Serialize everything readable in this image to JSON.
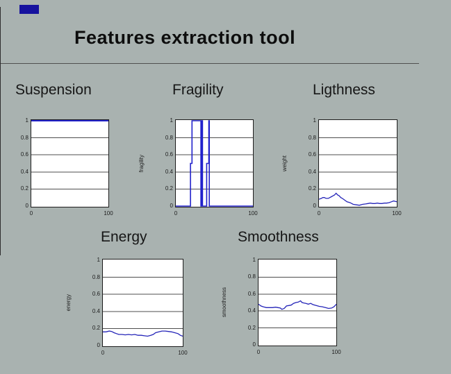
{
  "window": {
    "background": "#a9b2b0",
    "frame_line_color": "#2e2e2e",
    "divider_color": "#4f4f4f"
  },
  "marker": {
    "color": "#16129e"
  },
  "header": {
    "title": "Features extraction tool"
  },
  "chart_data": [
    {
      "type": "line",
      "title": "Suspension",
      "ylabel": "",
      "xlabel": "",
      "x_range": [
        0,
        100
      ],
      "y_range": [
        0,
        1
      ],
      "xticks": [
        0,
        100
      ],
      "yticks": [
        0,
        0.2,
        0.4,
        0.6,
        0.8,
        1
      ],
      "grid": "horizontal-only",
      "legend": false,
      "line_color": "#2222cc",
      "line_width": 2,
      "points": [
        [
          0,
          1
        ],
        [
          100,
          1
        ]
      ]
    },
    {
      "type": "line",
      "title": "Fragility",
      "ylabel": "fragility",
      "xlabel": "",
      "x_range": [
        0,
        100
      ],
      "y_range": [
        0,
        1
      ],
      "xticks": [
        0,
        100
      ],
      "yticks": [
        0,
        0.2,
        0.4,
        0.6,
        0.8,
        1
      ],
      "grid": "horizontal-only",
      "legend": false,
      "line_color": "#2222cc",
      "line_width": 1.6,
      "points": [
        [
          0,
          0
        ],
        [
          19,
          0
        ],
        [
          19,
          0.5
        ],
        [
          21,
          0.5
        ],
        [
          21,
          1
        ],
        [
          32.5,
          1
        ],
        [
          32.5,
          0
        ],
        [
          33.8,
          0
        ],
        [
          33.8,
          1
        ],
        [
          34.6,
          1
        ],
        [
          34.6,
          0
        ],
        [
          40,
          0
        ],
        [
          40,
          0.5
        ],
        [
          42.8,
          0.5
        ],
        [
          42.8,
          1
        ],
        [
          43.4,
          1
        ],
        [
          43.4,
          0
        ],
        [
          100,
          0
        ]
      ]
    },
    {
      "type": "line",
      "title": "Ligthness",
      "ylabel": "weight",
      "xlabel": "",
      "x_range": [
        0,
        100
      ],
      "y_range": [
        0,
        1
      ],
      "xticks": [
        0,
        100
      ],
      "yticks": [
        0,
        0.2,
        0.4,
        0.6,
        0.8,
        1
      ],
      "grid": "horizontal-only",
      "legend": false,
      "line_color": "#2424b8",
      "line_width": 1.3,
      "points": [
        [
          0,
          0.08
        ],
        [
          3,
          0.09
        ],
        [
          5,
          0.1
        ],
        [
          7,
          0.1
        ],
        [
          9,
          0.09
        ],
        [
          12,
          0.09
        ],
        [
          14,
          0.1
        ],
        [
          16,
          0.11
        ],
        [
          18,
          0.12
        ],
        [
          20,
          0.13
        ],
        [
          22,
          0.15
        ],
        [
          24,
          0.13
        ],
        [
          26,
          0.12
        ],
        [
          28,
          0.1
        ],
        [
          30,
          0.09
        ],
        [
          33,
          0.07
        ],
        [
          36,
          0.05
        ],
        [
          40,
          0.04
        ],
        [
          44,
          0.02
        ],
        [
          48,
          0.015
        ],
        [
          52,
          0.01
        ],
        [
          56,
          0.02
        ],
        [
          60,
          0.025
        ],
        [
          63,
          0.03
        ],
        [
          66,
          0.035
        ],
        [
          69,
          0.03
        ],
        [
          72,
          0.03
        ],
        [
          75,
          0.035
        ],
        [
          78,
          0.03
        ],
        [
          81,
          0.03
        ],
        [
          84,
          0.035
        ],
        [
          87,
          0.035
        ],
        [
          90,
          0.04
        ],
        [
          93,
          0.05
        ],
        [
          96,
          0.06
        ],
        [
          98,
          0.055
        ],
        [
          100,
          0.05
        ]
      ]
    },
    {
      "type": "line",
      "title": "Energy",
      "ylabel": "energy",
      "xlabel": "",
      "x_range": [
        0,
        100
      ],
      "y_range": [
        0,
        1
      ],
      "xticks": [
        0,
        100
      ],
      "yticks": [
        0,
        0.2,
        0.4,
        0.6,
        0.8,
        1
      ],
      "grid": "horizontal-only",
      "legend": false,
      "line_color": "#2424b8",
      "line_width": 1.3,
      "points": [
        [
          0,
          0.16
        ],
        [
          4,
          0.16
        ],
        [
          8,
          0.17
        ],
        [
          11,
          0.165
        ],
        [
          14,
          0.15
        ],
        [
          17,
          0.14
        ],
        [
          20,
          0.13
        ],
        [
          24,
          0.13
        ],
        [
          28,
          0.125
        ],
        [
          32,
          0.13
        ],
        [
          36,
          0.125
        ],
        [
          40,
          0.13
        ],
        [
          44,
          0.12
        ],
        [
          48,
          0.12
        ],
        [
          52,
          0.115
        ],
        [
          56,
          0.11
        ],
        [
          60,
          0.12
        ],
        [
          63,
          0.13
        ],
        [
          66,
          0.15
        ],
        [
          70,
          0.16
        ],
        [
          74,
          0.17
        ],
        [
          78,
          0.17
        ],
        [
          82,
          0.165
        ],
        [
          86,
          0.16
        ],
        [
          90,
          0.15
        ],
        [
          94,
          0.14
        ],
        [
          97,
          0.12
        ],
        [
          100,
          0.11
        ]
      ]
    },
    {
      "type": "line",
      "title": "Smoothness",
      "ylabel": "smoothness",
      "xlabel": "",
      "x_range": [
        0,
        100
      ],
      "y_range": [
        0,
        1
      ],
      "xticks": [
        0,
        100
      ],
      "yticks": [
        0,
        0.2,
        0.4,
        0.6,
        0.8,
        1
      ],
      "grid": "horizontal-only",
      "legend": false,
      "line_color": "#2424b8",
      "line_width": 1.3,
      "points": [
        [
          0,
          0.48
        ],
        [
          3,
          0.46
        ],
        [
          6,
          0.45
        ],
        [
          10,
          0.44
        ],
        [
          14,
          0.44
        ],
        [
          18,
          0.44
        ],
        [
          22,
          0.445
        ],
        [
          25,
          0.44
        ],
        [
          28,
          0.435
        ],
        [
          30,
          0.42
        ],
        [
          33,
          0.43
        ],
        [
          36,
          0.46
        ],
        [
          39,
          0.465
        ],
        [
          42,
          0.47
        ],
        [
          45,
          0.49
        ],
        [
          48,
          0.5
        ],
        [
          51,
          0.505
        ],
        [
          54,
          0.52
        ],
        [
          56,
          0.5
        ],
        [
          58,
          0.495
        ],
        [
          61,
          0.49
        ],
        [
          64,
          0.48
        ],
        [
          67,
          0.49
        ],
        [
          70,
          0.475
        ],
        [
          74,
          0.465
        ],
        [
          78,
          0.455
        ],
        [
          82,
          0.45
        ],
        [
          86,
          0.44
        ],
        [
          90,
          0.43
        ],
        [
          94,
          0.435
        ],
        [
          97,
          0.45
        ],
        [
          100,
          0.48
        ]
      ]
    }
  ]
}
